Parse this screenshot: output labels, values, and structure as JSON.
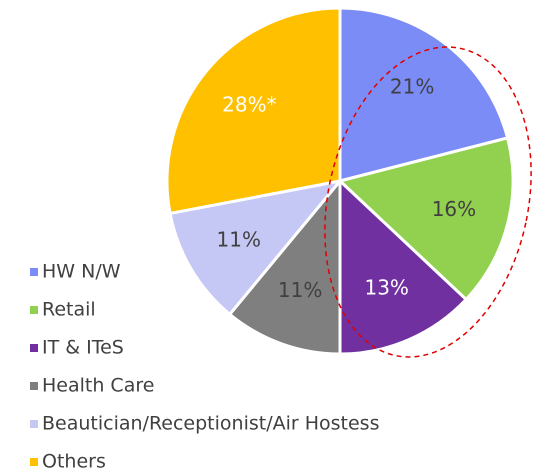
{
  "chart_data": {
    "type": "pie",
    "categories": [
      "HW N/W",
      "Retail",
      "IT & ITeS",
      "Health Care",
      "Beautician/Receptionist/Air Hostess",
      "Others"
    ],
    "values": [
      21,
      16,
      13,
      11,
      11,
      28
    ],
    "value_labels": [
      "21%",
      "16%",
      "13%",
      "11%",
      "11%",
      "28%*"
    ],
    "colors": [
      "#7b8cf7",
      "#92d050",
      "#7030a0",
      "#7f7f7f",
      "#c5c8f5",
      "#ffc000"
    ],
    "label_colors": [
      "#404040",
      "#404040",
      "#ffffff",
      "#404040",
      "#404040",
      "#ffffff"
    ],
    "legend": "bottom-left"
  }
}
